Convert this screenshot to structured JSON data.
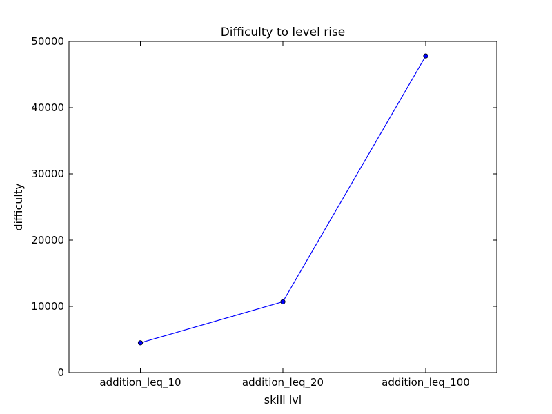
{
  "chart_data": {
    "type": "line",
    "title": "Difficulty to level rise",
    "xlabel": "skill lvl",
    "ylabel": "difficulty",
    "categories": [
      "addition_leq_10",
      "addition_leq_20",
      "addition_leq_100"
    ],
    "series": [
      {
        "values": [
          4500,
          10700,
          47800
        ],
        "color": "#0000ff",
        "marker": "circle"
      }
    ],
    "ylim": [
      0,
      50000
    ],
    "yticks": [
      "0",
      "10000",
      "20000",
      "30000",
      "40000",
      "50000"
    ],
    "grid": false,
    "legend": "none"
  }
}
